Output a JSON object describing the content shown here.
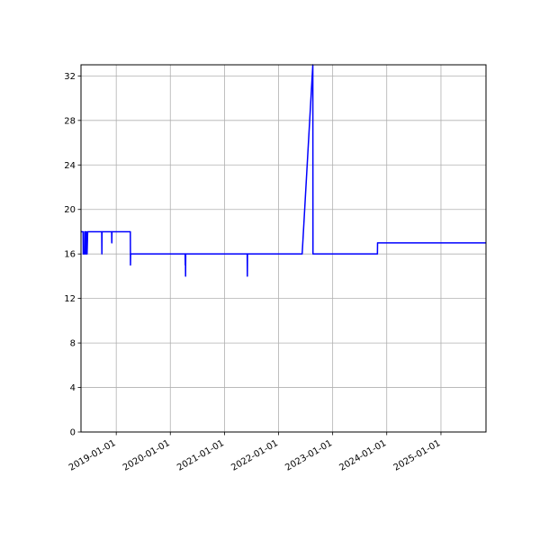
{
  "chart_data": {
    "type": "line",
    "title": "",
    "xlabel": "",
    "ylabel": "",
    "xlim": [
      "2018-05-08",
      "2025-11-01"
    ],
    "ylim": [
      0,
      33
    ],
    "grid": true,
    "line_color": "#0000ff",
    "x_ticks": [
      "2019-01-01",
      "2020-01-01",
      "2021-01-01",
      "2022-01-01",
      "2023-01-01",
      "2024-01-01",
      "2025-01-01"
    ],
    "y_ticks": [
      0,
      4,
      8,
      12,
      16,
      20,
      24,
      28,
      32
    ],
    "series": [
      {
        "points": [
          [
            "2018-05-08",
            18
          ],
          [
            "2018-05-22",
            18
          ],
          [
            "2018-05-23",
            16
          ],
          [
            "2018-06-01",
            16
          ],
          [
            "2018-06-02",
            18
          ],
          [
            "2018-06-05",
            18
          ],
          [
            "2018-06-06",
            16
          ],
          [
            "2018-06-12",
            16
          ],
          [
            "2018-06-13",
            18
          ],
          [
            "2018-06-18",
            16
          ],
          [
            "2018-06-22",
            18
          ],
          [
            "2018-09-25",
            18
          ],
          [
            "2018-09-26",
            16
          ],
          [
            "2018-09-27",
            18
          ],
          [
            "2018-12-01",
            18
          ],
          [
            "2018-12-02",
            17
          ],
          [
            "2018-12-03",
            18
          ],
          [
            "2019-04-06",
            18
          ],
          [
            "2019-04-07",
            15
          ],
          [
            "2019-04-08",
            16
          ],
          [
            "2020-04-10",
            16
          ],
          [
            "2020-04-11",
            15
          ],
          [
            "2020-04-12",
            16
          ],
          [
            "2020-04-13",
            14
          ],
          [
            "2020-04-14",
            16
          ],
          [
            "2021-06-03",
            16
          ],
          [
            "2021-06-04",
            14
          ],
          [
            "2021-06-05",
            16
          ],
          [
            "2022-06-09",
            16
          ],
          [
            "2022-08-20",
            33
          ],
          [
            "2022-08-21",
            16
          ],
          [
            "2023-10-30",
            16
          ],
          [
            "2023-10-31",
            17
          ],
          [
            "2025-11-01",
            17
          ]
        ]
      }
    ]
  }
}
